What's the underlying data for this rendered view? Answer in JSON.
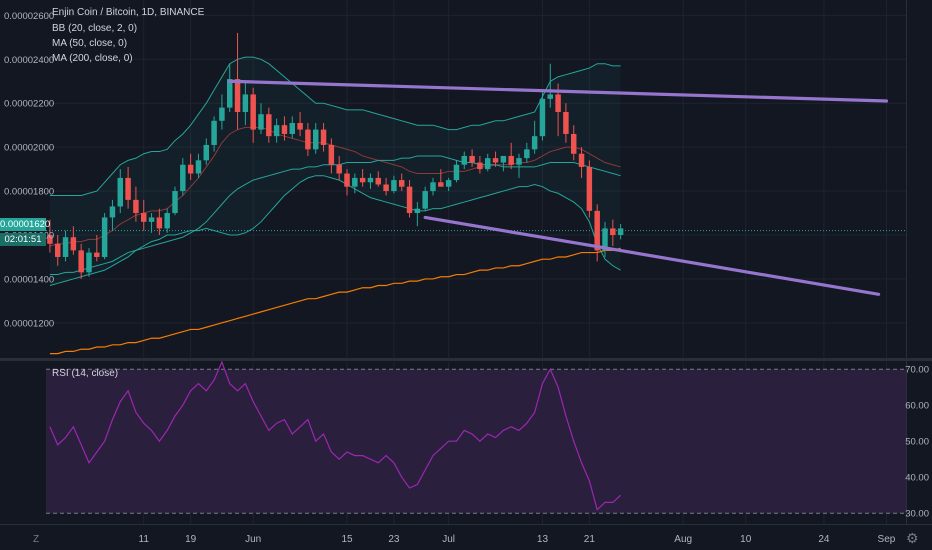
{
  "legend": {
    "title": "Enjin Coin / Bitcoin, 1D, BINANCE",
    "bb": "BB (20, close, 2, 0)",
    "ma50": "MA (50, close, 0)",
    "ma200": "MA (200, close, 0)",
    "rsi": "RSI (14, close)"
  },
  "price_tag": "0.00001620",
  "countdown_tag": "02:01:51",
  "timezone_glyph": "Z",
  "colors": {
    "up": "#26a69a",
    "down": "#ef5350",
    "bb_band": "#26a69a",
    "ma50": "#ef5350",
    "ma200": "#f57c00",
    "trendline": "#9575cd",
    "rsi_line": "#9c27b0",
    "rsi_fill": "#2a1f3d"
  },
  "chart_data": [
    {
      "type": "candlestick",
      "title": "Enjin Coin / Bitcoin, 1D, BINANCE",
      "ylim": [
        1.04e-05,
        2.67e-05
      ],
      "y_ticks": [
        "0.00002600",
        "0.00002400",
        "0.00002200",
        "0.00002000",
        "0.00001800",
        "0.00001600",
        "0.00001400",
        "0.00001200"
      ],
      "y_tick_values": [
        2.6e-05,
        2.4e-05,
        2.2e-05,
        2e-05,
        1.8e-05,
        1.6e-05,
        1.4e-05,
        1.2e-05
      ],
      "x_ticks": [
        "11",
        "19",
        "Jun",
        "15",
        "23",
        "Jul",
        "13",
        "21",
        "Aug",
        "10",
        "24",
        "Sep"
      ],
      "x_tick_index": [
        12,
        18,
        26,
        38,
        44,
        51,
        63,
        69,
        81,
        89,
        99,
        107
      ],
      "n_slots": 110,
      "ohlc": [
        [
          1.6,
          1.67,
          1.52,
          1.56
        ],
        [
          1.56,
          1.6,
          1.46,
          1.5
        ],
        [
          1.5,
          1.62,
          1.48,
          1.59
        ],
        [
          1.59,
          1.64,
          1.51,
          1.53
        ],
        [
          1.53,
          1.56,
          1.4,
          1.43
        ],
        [
          1.43,
          1.54,
          1.41,
          1.52
        ],
        [
          1.52,
          1.6,
          1.48,
          1.5
        ],
        [
          1.5,
          1.7,
          1.49,
          1.68
        ],
        [
          1.68,
          1.76,
          1.62,
          1.73
        ],
        [
          1.73,
          1.9,
          1.7,
          1.86
        ],
        [
          1.86,
          1.91,
          1.72,
          1.76
        ],
        [
          1.76,
          1.82,
          1.66,
          1.7
        ],
        [
          1.7,
          1.76,
          1.62,
          1.66
        ],
        [
          1.66,
          1.7,
          1.61,
          1.68
        ],
        [
          1.68,
          1.72,
          1.6,
          1.63
        ],
        [
          1.63,
          1.72,
          1.61,
          1.7
        ],
        [
          1.7,
          1.82,
          1.69,
          1.8
        ],
        [
          1.8,
          1.95,
          1.78,
          1.92
        ],
        [
          1.92,
          1.97,
          1.85,
          1.88
        ],
        [
          1.88,
          1.97,
          1.86,
          1.94
        ],
        [
          1.94,
          2.04,
          1.92,
          2.01
        ],
        [
          2.01,
          2.14,
          1.98,
          2.12
        ],
        [
          2.12,
          2.24,
          2.08,
          2.18
        ],
        [
          2.18,
          2.38,
          2.16,
          2.31
        ],
        [
          2.31,
          2.52,
          2.08,
          2.16
        ],
        [
          2.16,
          2.3,
          2.1,
          2.24
        ],
        [
          2.24,
          2.27,
          2.02,
          2.08
        ],
        [
          2.08,
          2.2,
          2.06,
          2.15
        ],
        [
          2.15,
          2.18,
          2.02,
          2.05
        ],
        [
          2.05,
          2.13,
          2.02,
          2.1
        ],
        [
          2.1,
          2.14,
          2.03,
          2.06
        ],
        [
          2.06,
          2.14,
          2.04,
          2.11
        ],
        [
          2.11,
          2.16,
          2.05,
          2.08
        ],
        [
          2.08,
          2.11,
          1.96,
          1.99
        ],
        [
          1.99,
          2.11,
          1.97,
          2.08
        ],
        [
          2.08,
          2.11,
          1.98,
          2.01
        ],
        [
          2.01,
          2.04,
          1.88,
          1.92
        ],
        [
          1.92,
          1.96,
          1.85,
          1.88
        ],
        [
          1.88,
          1.9,
          1.78,
          1.82
        ],
        [
          1.82,
          1.88,
          1.79,
          1.86
        ],
        [
          1.86,
          1.9,
          1.82,
          1.84
        ],
        [
          1.84,
          1.88,
          1.81,
          1.86
        ],
        [
          1.86,
          1.89,
          1.82,
          1.83
        ],
        [
          1.83,
          1.86,
          1.78,
          1.8
        ],
        [
          1.8,
          1.87,
          1.79,
          1.85
        ],
        [
          1.85,
          1.88,
          1.8,
          1.82
        ],
        [
          1.82,
          1.85,
          1.68,
          1.7
        ],
        [
          1.7,
          1.75,
          1.64,
          1.72
        ],
        [
          1.72,
          1.82,
          1.71,
          1.8
        ],
        [
          1.8,
          1.86,
          1.78,
          1.84
        ],
        [
          1.84,
          1.9,
          1.82,
          1.82
        ],
        [
          1.82,
          1.86,
          1.8,
          1.85
        ],
        [
          1.85,
          1.94,
          1.84,
          1.92
        ],
        [
          1.92,
          1.98,
          1.9,
          1.96
        ],
        [
          1.96,
          1.99,
          1.91,
          1.93
        ],
        [
          1.93,
          1.96,
          1.88,
          1.9
        ],
        [
          1.9,
          1.97,
          1.89,
          1.95
        ],
        [
          1.95,
          1.98,
          1.91,
          1.93
        ],
        [
          1.93,
          1.96,
          1.89,
          1.96
        ],
        [
          1.96,
          2.02,
          1.9,
          1.92
        ],
        [
          1.92,
          1.97,
          1.86,
          1.95
        ],
        [
          1.95,
          2.02,
          1.93,
          1.99
        ],
        [
          1.99,
          2.12,
          1.97,
          2.05
        ],
        [
          2.05,
          2.26,
          2.03,
          2.22
        ],
        [
          2.22,
          2.38,
          2.18,
          2.24
        ],
        [
          2.24,
          2.29,
          2.05,
          2.16
        ],
        [
          2.16,
          2.2,
          2.02,
          2.06
        ],
        [
          2.06,
          2.1,
          1.94,
          1.97
        ],
        [
          1.97,
          2.0,
          1.86,
          1.91
        ],
        [
          1.91,
          1.94,
          1.68,
          1.71
        ],
        [
          1.71,
          1.74,
          1.48,
          1.53
        ],
        [
          1.53,
          1.66,
          1.5,
          1.63
        ],
        [
          1.63,
          1.67,
          1.55,
          1.6
        ],
        [
          1.6,
          1.65,
          1.58,
          1.63
        ]
      ],
      "bb_upper": [
        1.78,
        1.78,
        1.78,
        1.78,
        1.78,
        1.79,
        1.8,
        1.84,
        1.88,
        1.92,
        1.94,
        1.95,
        1.97,
        1.98,
        1.98,
        1.99,
        2.03,
        2.06,
        2.1,
        2.15,
        2.2,
        2.26,
        2.32,
        2.38,
        2.4,
        2.41,
        2.41,
        2.4,
        2.38,
        2.35,
        2.32,
        2.29,
        2.26,
        2.23,
        2.2,
        2.2,
        2.19,
        2.18,
        2.17,
        2.17,
        2.17,
        2.16,
        2.15,
        2.14,
        2.13,
        2.12,
        2.11,
        2.1,
        2.1,
        2.1,
        2.09,
        2.08,
        2.08,
        2.09,
        2.1,
        2.1,
        2.11,
        2.12,
        2.12,
        2.13,
        2.14,
        2.15,
        2.16,
        2.23,
        2.3,
        2.32,
        2.33,
        2.34,
        2.35,
        2.36,
        2.38,
        2.38,
        2.37,
        2.37
      ],
      "bb_lower": [
        1.37,
        1.38,
        1.39,
        1.4,
        1.41,
        1.42,
        1.43,
        1.44,
        1.46,
        1.48,
        1.5,
        1.53,
        1.55,
        1.57,
        1.58,
        1.6,
        1.6,
        1.61,
        1.62,
        1.62,
        1.63,
        1.62,
        1.61,
        1.6,
        1.6,
        1.61,
        1.63,
        1.66,
        1.7,
        1.74,
        1.78,
        1.81,
        1.84,
        1.86,
        1.87,
        1.87,
        1.86,
        1.85,
        1.83,
        1.81,
        1.79,
        1.77,
        1.76,
        1.75,
        1.74,
        1.73,
        1.72,
        1.71,
        1.71,
        1.72,
        1.72,
        1.73,
        1.74,
        1.75,
        1.76,
        1.77,
        1.78,
        1.79,
        1.8,
        1.81,
        1.82,
        1.82,
        1.83,
        1.82,
        1.8,
        1.79,
        1.77,
        1.75,
        1.72,
        1.66,
        1.56,
        1.49,
        1.46,
        1.44
      ],
      "bb_basis": [
        1.55,
        1.56,
        1.56,
        1.57,
        1.57,
        1.58,
        1.58,
        1.6,
        1.62,
        1.65,
        1.67,
        1.69,
        1.7,
        1.71,
        1.71,
        1.72,
        1.75,
        1.78,
        1.82,
        1.86,
        1.91,
        1.96,
        2.02,
        2.06,
        2.08,
        2.09,
        2.09,
        2.09,
        2.08,
        2.06,
        2.05,
        2.04,
        2.03,
        2.02,
        2.02,
        2.02,
        2.01,
        2.0,
        1.99,
        1.98,
        1.96,
        1.95,
        1.94,
        1.93,
        1.92,
        1.91,
        1.89,
        1.88,
        1.88,
        1.88,
        1.88,
        1.89,
        1.89,
        1.89,
        1.9,
        1.91,
        1.91,
        1.92,
        1.92,
        1.92,
        1.93,
        1.93,
        1.94,
        1.96,
        1.98,
        1.99,
        2.0,
        2.0,
        1.99,
        1.97,
        1.95,
        1.93,
        1.92,
        1.91
      ],
      "ma50": [
        1.42,
        1.42,
        1.43,
        1.43,
        1.44,
        1.45,
        1.46,
        1.47,
        1.48,
        1.5,
        1.52,
        1.53,
        1.54,
        1.55,
        1.56,
        1.57,
        1.58,
        1.59,
        1.61,
        1.63,
        1.66,
        1.7,
        1.74,
        1.78,
        1.81,
        1.83,
        1.85,
        1.86,
        1.87,
        1.88,
        1.89,
        1.9,
        1.9,
        1.91,
        1.91,
        1.92,
        1.92,
        1.92,
        1.93,
        1.93,
        1.93,
        1.93,
        1.94,
        1.94,
        1.94,
        1.95,
        1.95,
        1.96,
        1.96,
        1.96,
        1.96,
        1.95,
        1.94,
        1.93,
        1.93,
        1.92,
        1.92,
        1.92,
        1.91,
        1.91,
        1.91,
        1.91,
        1.91,
        1.92,
        1.93,
        1.93,
        1.93,
        1.93,
        1.92,
        1.91,
        1.9,
        1.89,
        1.88,
        1.87
      ],
      "ma200": [
        1.06,
        1.06,
        1.07,
        1.07,
        1.08,
        1.08,
        1.09,
        1.09,
        1.1,
        1.1,
        1.11,
        1.11,
        1.12,
        1.13,
        1.13,
        1.14,
        1.15,
        1.16,
        1.17,
        1.17,
        1.18,
        1.19,
        1.2,
        1.21,
        1.22,
        1.23,
        1.24,
        1.25,
        1.26,
        1.27,
        1.28,
        1.29,
        1.3,
        1.31,
        1.31,
        1.32,
        1.33,
        1.34,
        1.34,
        1.35,
        1.36,
        1.36,
        1.37,
        1.37,
        1.38,
        1.38,
        1.39,
        1.39,
        1.4,
        1.4,
        1.41,
        1.41,
        1.42,
        1.42,
        1.43,
        1.44,
        1.44,
        1.45,
        1.45,
        1.46,
        1.46,
        1.47,
        1.48,
        1.49,
        1.49,
        1.5,
        1.5,
        1.51,
        1.52,
        1.52,
        1.52,
        1.53,
        1.53,
        1.54
      ],
      "trendline_upper": [
        [
          23,
          2.3
        ],
        [
          107,
          2.21
        ]
      ],
      "trendline_lower": [
        [
          48,
          1.68
        ],
        [
          106,
          1.33
        ]
      ],
      "price_scale_multiplier": 1e-05,
      "current_price": 1.62e-05
    },
    {
      "type": "line",
      "title": "RSI (14, close)",
      "ylim": [
        27,
        72
      ],
      "y_ticks": [
        "70.00",
        "60.00",
        "50.00",
        "40.00",
        "30.00"
      ],
      "y_tick_values": [
        70,
        60,
        50,
        40,
        30
      ],
      "bands": [
        30,
        70
      ],
      "values": [
        54,
        49,
        51,
        54,
        49,
        44,
        47,
        50,
        56,
        61,
        64,
        58,
        55,
        53,
        50,
        53,
        57,
        60,
        64,
        66,
        64,
        67,
        72,
        66,
        64,
        66,
        61,
        57,
        53,
        55,
        56,
        52,
        54,
        56,
        50,
        52,
        47,
        45,
        47,
        46,
        46,
        45,
        44,
        46,
        44,
        40,
        37,
        38,
        42,
        46,
        48,
        50,
        50,
        53,
        52,
        50,
        52,
        51,
        53,
        54,
        53,
        55,
        58,
        66,
        70,
        65,
        57,
        50,
        44,
        39,
        31,
        33,
        33,
        35
      ]
    }
  ]
}
